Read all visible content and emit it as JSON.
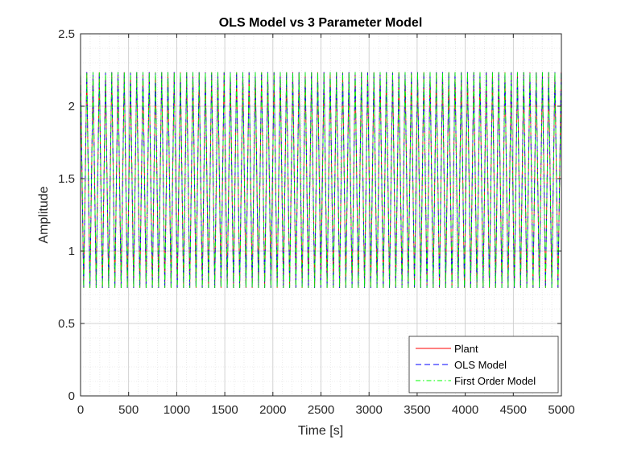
{
  "chart_data": {
    "type": "line",
    "title": "OLS Model vs 3 Parameter Model",
    "xlabel": "Time [s]",
    "ylabel": "Amplitude",
    "xlim": [
      0,
      5000
    ],
    "ylim": [
      0,
      2.5
    ],
    "xticks": [
      0,
      500,
      1000,
      1500,
      2000,
      2500,
      3000,
      3500,
      4000,
      4500,
      5000
    ],
    "yticks": [
      0,
      0.5,
      1,
      1.5,
      2,
      2.5
    ],
    "xtick_labels": [
      "0",
      "500",
      "1000",
      "1500",
      "2000",
      "2500",
      "3000",
      "3500",
      "4000",
      "4500",
      "5000"
    ],
    "ytick_labels": [
      "0",
      "0.5",
      "1",
      "1.5",
      "2",
      "2.5"
    ],
    "grid": true,
    "minor_grid": true,
    "legend_position": "bottom-right",
    "signal": {
      "offset": 1.49,
      "amplitude": 0.745,
      "period": 64.9,
      "initial_value": 0,
      "max": 2.235,
      "min": 0.745
    },
    "series": [
      {
        "name": "Plant",
        "color": "#ff0000",
        "style": "solid",
        "phase_offset": 0
      },
      {
        "name": "OLS Model",
        "color": "#0000ff",
        "style": "dashed",
        "phase_offset": 0
      },
      {
        "name": "First Order Model",
        "color": "#00ff00",
        "style": "dashdot",
        "phase_offset": 0.6
      }
    ]
  }
}
